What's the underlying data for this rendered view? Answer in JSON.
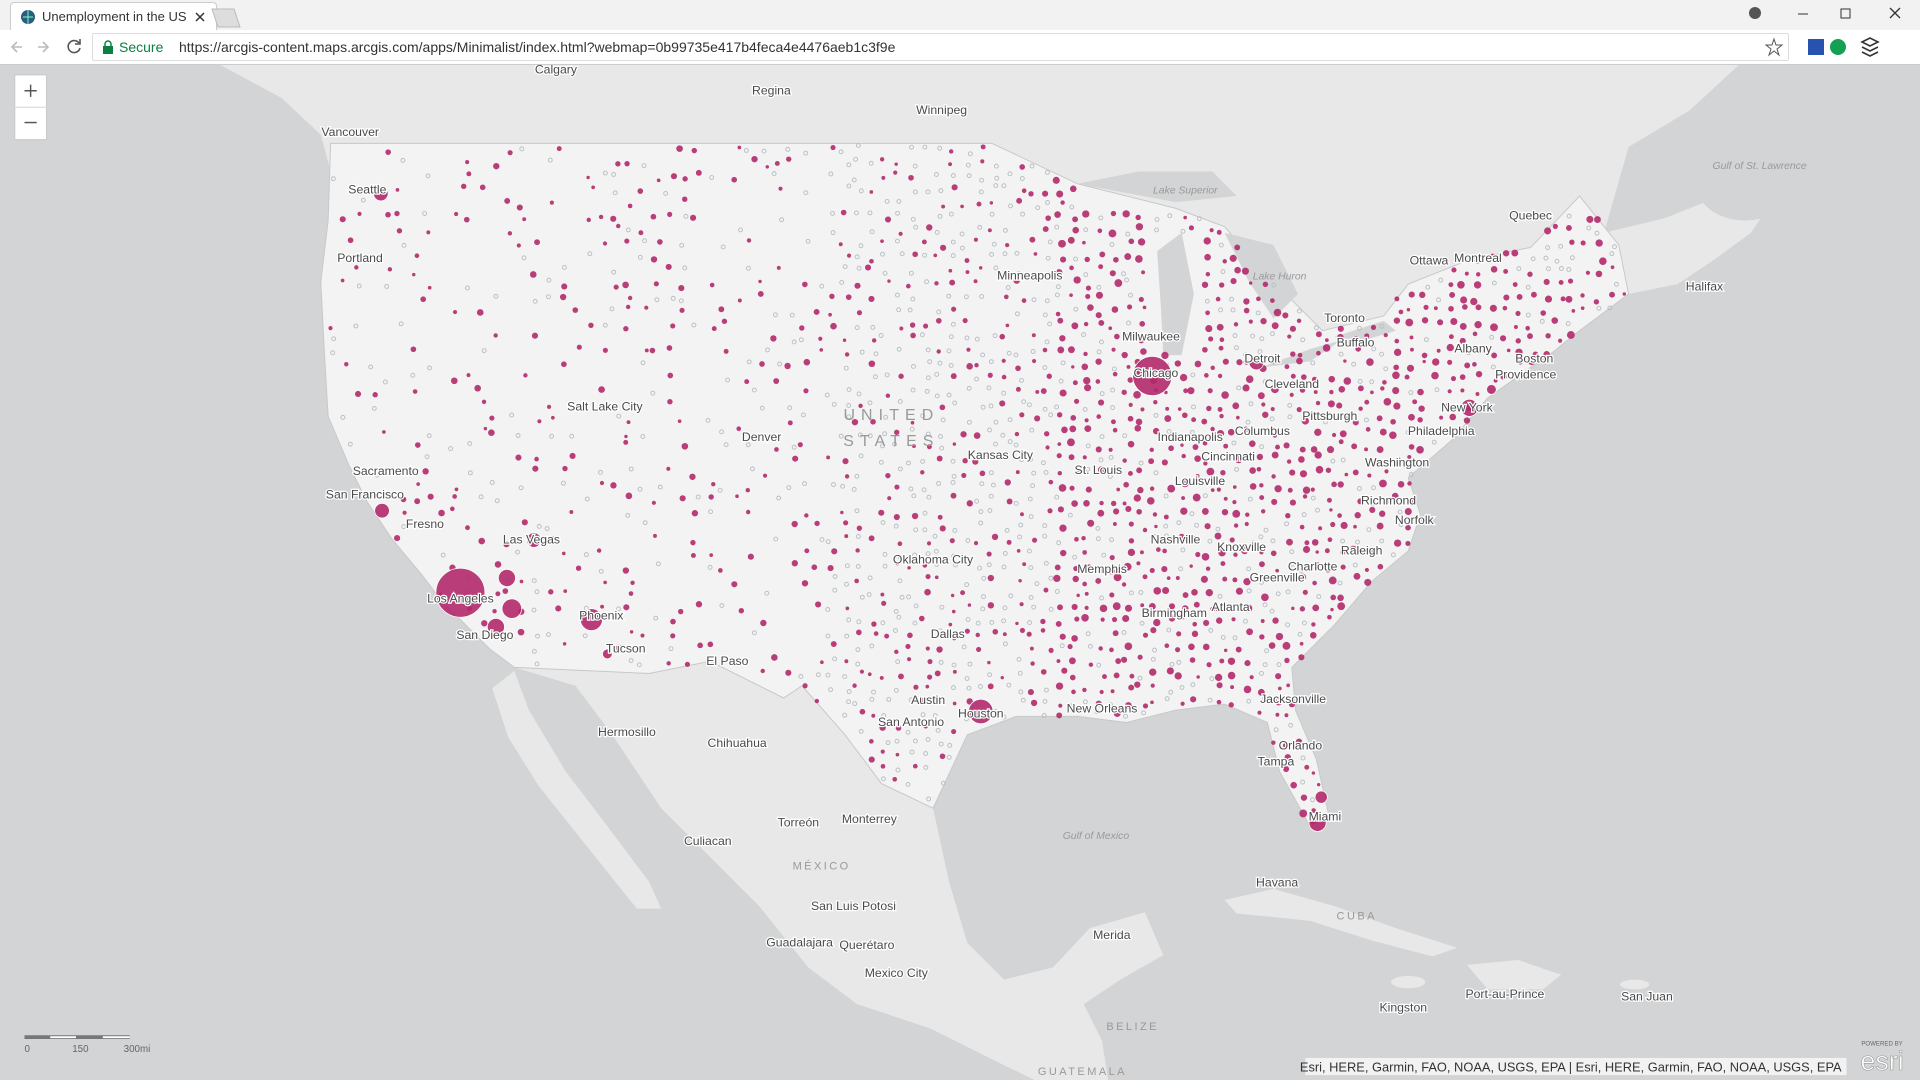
{
  "browser": {
    "tab_title": "Unemployment in the US",
    "secure_label": "Secure",
    "url": "https://arcgis-content.maps.arcgis.com/apps/Minimalist/index.html?webmap=0b99735e417b4feca4e4476aeb1c3f9e"
  },
  "map": {
    "labels": [
      "Calgary",
      "Regina",
      "Winnipeg",
      "Vancouver",
      "Seattle",
      "Portland",
      "Minneapolis",
      "Lake Superior",
      "Quebec",
      "Ottawa",
      "Montreal",
      "Halifax",
      "Gulf of St. Lawrence",
      "Lake Huron",
      "Toronto",
      "Buffalo",
      "Albany",
      "Boston",
      "Providence",
      "Milwaukee",
      "Detroit",
      "Chicago",
      "Cleveland",
      "Pittsburgh",
      "New York",
      "Philadelphia",
      "Salt Lake City",
      "UNITED",
      "STATES",
      "Denver",
      "Indianapolis",
      "Columbus",
      "Sacramento",
      "Cincinnati",
      "Kansas City",
      "St. Louis",
      "Louisville",
      "Washington",
      "San Francisco",
      "Richmond",
      "Norfolk",
      "Fresno",
      "Las Vegas",
      "Nashville",
      "Knoxville",
      "Raleigh",
      "Oklahoma City",
      "Memphis",
      "Charlotte",
      "Greenville",
      "Los Angeles",
      "Birmingham",
      "Atlanta",
      "Phoenix",
      "Dallas",
      "San Diego",
      "Tucson",
      "El Paso",
      "Jacksonville",
      "Austin",
      "Houston",
      "New Orleans",
      "San Antonio",
      "Hermosillo",
      "Chihuahua",
      "Orlando",
      "Tampa",
      "Miami",
      "Gulf of Mexico",
      "Monterrey",
      "Torreón",
      "Culiacan",
      "MÉXICO",
      "Havana",
      "CUBA",
      "San Luis Potosi",
      "Merida",
      "Guadalajara",
      "Querétaro",
      "Mexico City",
      "Port-au-Prince",
      "San Juan",
      "Kingston",
      "BELIZE",
      "GUATEMALA"
    ],
    "scale": {
      "labels": [
        "0",
        "150",
        "300mi"
      ]
    },
    "attribution": "Esri, HERE, Garmin, FAO, NOAA, USGS, EPA | Esri, HERE, Garmin, FAO, NOAA, USGS, EPA",
    "logo": {
      "powered_by": "POWERED BY",
      "brand": "esri"
    }
  }
}
